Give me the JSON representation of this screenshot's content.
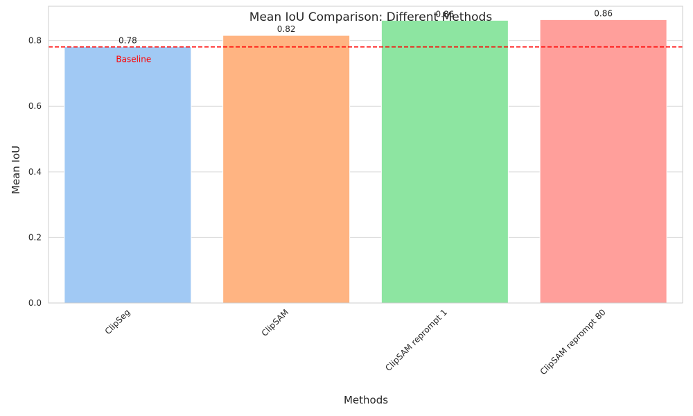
{
  "chart_data": {
    "type": "bar",
    "title": "Mean IoU Comparison: Different Methods",
    "xlabel": "Methods",
    "ylabel": "Mean IoU",
    "categories": [
      "ClipSeg",
      "ClipSAM",
      "ClipSAM reprompt 1",
      "ClipSAM reprompt 80"
    ],
    "values": [
      0.781,
      0.816,
      0.862,
      0.864
    ],
    "data_labels": [
      "0.78",
      "0.82",
      "0.86",
      "0.86"
    ],
    "colors": [
      "#a1c9f4",
      "#ffb482",
      "#8de5a1",
      "#ff9f9b"
    ],
    "ylim": [
      0,
      0.905
    ],
    "yticks": [
      0.0,
      0.2,
      0.4,
      0.6,
      0.8
    ],
    "ytick_labels": [
      "0.0",
      "0.2",
      "0.4",
      "0.6",
      "0.8"
    ],
    "grid": true,
    "xtick_rotation": 45,
    "baseline": {
      "value": 0.781,
      "label": "Baseline",
      "color": "#ff0000"
    }
  }
}
